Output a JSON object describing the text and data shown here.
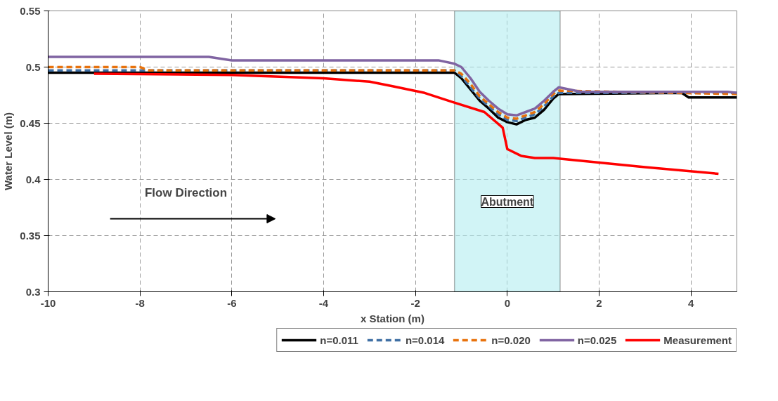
{
  "chart_data": {
    "type": "line",
    "xlabel": "x Station (m)",
    "ylabel": "Water Level (m)",
    "xlim": [
      -10,
      5
    ],
    "ylim": [
      0.3,
      0.55
    ],
    "xticks": [
      -10,
      -8,
      -6,
      -4,
      -2,
      0,
      2,
      4
    ],
    "yticks": [
      0.3,
      0.35,
      0.4,
      0.45,
      0.5,
      0.55
    ],
    "grid": true,
    "legend": "bottom",
    "marker": "none",
    "series": [
      {
        "name": "n=0.011",
        "color": "#000000",
        "line_style": "solid",
        "x": [
          -10,
          -1.15,
          -1.0,
          -0.8,
          -0.6,
          -0.4,
          -0.2,
          0,
          0.2,
          0.4,
          0.6,
          0.8,
          1.0,
          1.12,
          3.8,
          3.95,
          5
        ],
        "values": [
          0.495,
          0.495,
          0.49,
          0.48,
          0.47,
          0.463,
          0.455,
          0.451,
          0.449,
          0.453,
          0.455,
          0.462,
          0.472,
          0.476,
          0.477,
          0.473,
          0.473
        ]
      },
      {
        "name": "n=0.014",
        "color": "#3f6fa4",
        "line_style": "dashed",
        "x": [
          -10,
          -1.15,
          -1.0,
          -0.8,
          -0.6,
          -0.4,
          -0.2,
          0,
          0.2,
          0.4,
          0.6,
          0.8,
          1.0,
          1.12,
          5
        ],
        "values": [
          0.497,
          0.497,
          0.492,
          0.482,
          0.472,
          0.465,
          0.458,
          0.453,
          0.452,
          0.455,
          0.458,
          0.465,
          0.474,
          0.477,
          0.477
        ]
      },
      {
        "name": "n=0.020",
        "color": "#e8720c",
        "line_style": "dashed",
        "x": [
          -10,
          -8,
          -7.8,
          -1.15,
          -1.0,
          -0.8,
          -0.6,
          -0.4,
          -0.2,
          0,
          0.2,
          0.4,
          0.6,
          0.8,
          1.0,
          1.12,
          5
        ],
        "values": [
          0.5,
          0.5,
          0.497,
          0.497,
          0.494,
          0.485,
          0.474,
          0.467,
          0.46,
          0.455,
          0.454,
          0.457,
          0.46,
          0.467,
          0.476,
          0.479,
          0.476
        ]
      },
      {
        "name": "n=0.025",
        "color": "#8064a2",
        "line_style": "solid",
        "x": [
          -10,
          -6.5,
          -6.0,
          -1.5,
          -1.15,
          -1.0,
          -0.8,
          -0.6,
          -0.4,
          -0.2,
          0,
          0.2,
          0.4,
          0.6,
          0.8,
          1.0,
          1.12,
          1.6,
          4.8,
          5
        ],
        "values": [
          0.509,
          0.509,
          0.506,
          0.506,
          0.503,
          0.5,
          0.49,
          0.478,
          0.47,
          0.463,
          0.458,
          0.457,
          0.46,
          0.463,
          0.47,
          0.478,
          0.482,
          0.478,
          0.478,
          0.477
        ]
      },
      {
        "name": "Measurement",
        "color": "#ff0000",
        "line_style": "solid",
        "x": [
          -9,
          -6,
          -4,
          -3,
          -2.5,
          -1.8,
          -1.2,
          -0.5,
          -0.1,
          0,
          0.3,
          0.6,
          1.0,
          2.0,
          3.0,
          4.6
        ],
        "values": [
          0.494,
          0.493,
          0.49,
          0.487,
          0.483,
          0.477,
          0.469,
          0.46,
          0.446,
          0.427,
          0.421,
          0.419,
          0.419,
          0.415,
          0.411,
          0.405
        ]
      }
    ],
    "bands": [
      {
        "axis": "x",
        "from": -1.15,
        "to": 1.15,
        "label": "Abutment",
        "color": "#b3ecf0"
      }
    ],
    "annotations": [
      "Flow Direction"
    ]
  }
}
